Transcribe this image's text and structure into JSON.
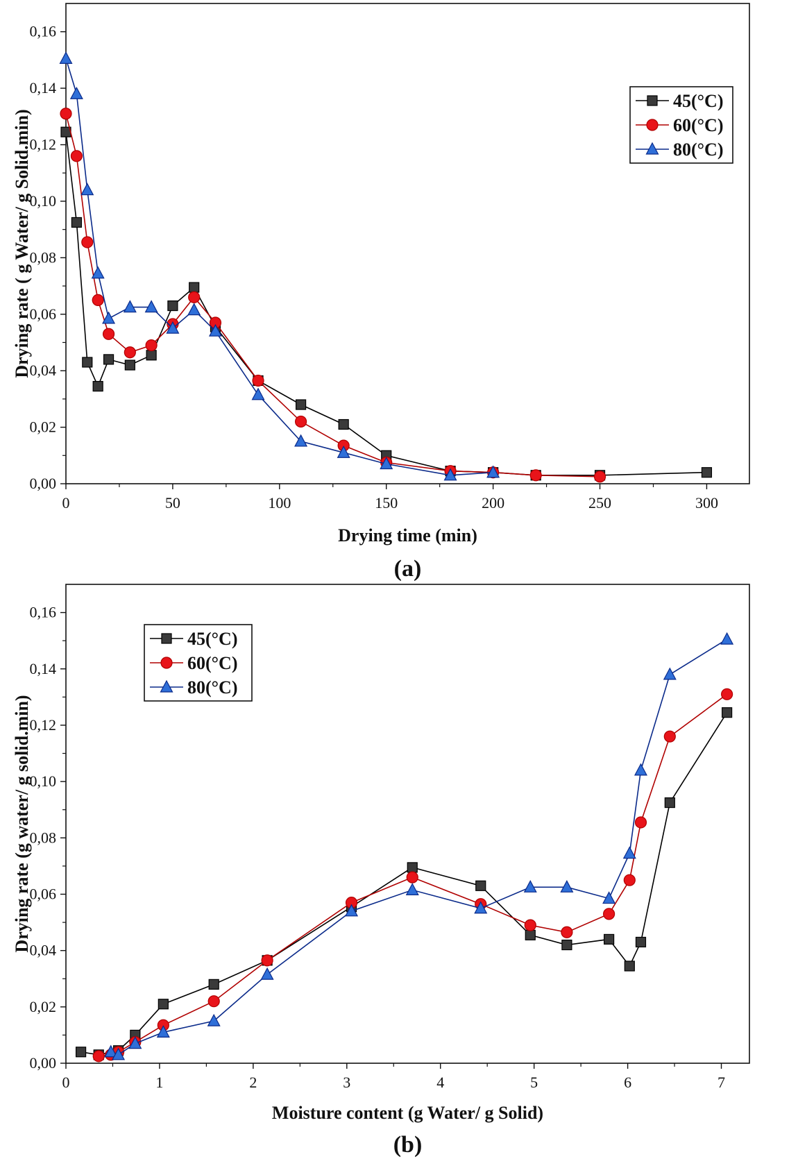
{
  "chart_data": [
    {
      "type": "line",
      "panel_label": "(a)",
      "xlabel": "Drying time (min)",
      "ylabel": "Drying rate ( g Water/ g Solid.min)",
      "xlim": [
        0,
        320
      ],
      "ylim": [
        0,
        0.17
      ],
      "xticks": [
        0,
        50,
        100,
        150,
        200,
        250,
        300
      ],
      "xtick_labels": [
        "0",
        "50",
        "100",
        "150",
        "200",
        "250",
        "300"
      ],
      "yticks": [
        0,
        0.02,
        0.04,
        0.06,
        0.08,
        0.1,
        0.12,
        0.14,
        0.16
      ],
      "ytick_labels": [
        "0,00",
        "0,02",
        "0,04",
        "0,06",
        "0,08",
        "0,10",
        "0,12",
        "0,14",
        "0,16"
      ],
      "legend_position": "top-right",
      "series": [
        {
          "name": "45(°C)",
          "marker": "square",
          "color": "#000000",
          "fill": "#3a3a3a",
          "x": [
            0,
            5,
            10,
            15,
            20,
            30,
            40,
            50,
            60,
            70,
            90,
            110,
            130,
            150,
            180,
            200,
            220,
            250,
            300
          ],
          "y": [
            0.1245,
            0.0925,
            0.043,
            0.0345,
            0.044,
            0.042,
            0.0455,
            0.063,
            0.0695,
            0.0555,
            0.0365,
            0.028,
            0.021,
            0.01,
            0.0045,
            0.004,
            0.003,
            0.003,
            0.004
          ]
        },
        {
          "name": "60(°C)",
          "marker": "circle",
          "color": "#b00000",
          "fill": "#e8141a",
          "x": [
            0,
            5,
            10,
            15,
            20,
            30,
            40,
            50,
            60,
            70,
            90,
            110,
            130,
            150,
            180,
            200,
            220,
            250
          ],
          "y": [
            0.131,
            0.116,
            0.0855,
            0.065,
            0.053,
            0.0465,
            0.049,
            0.0565,
            0.066,
            0.057,
            0.0365,
            0.022,
            0.0135,
            0.0075,
            0.0045,
            0.004,
            0.003,
            0.0025
          ]
        },
        {
          "name": "80(°C)",
          "marker": "triangle",
          "color": "#0a2a8a",
          "fill": "#2f6fd8",
          "x": [
            0,
            5,
            10,
            15,
            20,
            30,
            40,
            50,
            60,
            70,
            90,
            110,
            130,
            150,
            180,
            200
          ],
          "y": [
            0.1505,
            0.138,
            0.104,
            0.0745,
            0.0585,
            0.0625,
            0.0625,
            0.055,
            0.0615,
            0.054,
            0.0315,
            0.015,
            0.011,
            0.007,
            0.003,
            0.004
          ]
        }
      ]
    },
    {
      "type": "line",
      "panel_label": "(b)",
      "xlabel": "Moisture content (g Water/ g Solid)",
      "ylabel": "Drying rate (g water/ g solid.min)",
      "xlim": [
        0,
        7.3
      ],
      "ylim": [
        0,
        0.17
      ],
      "xticks": [
        0,
        1,
        2,
        3,
        4,
        5,
        6,
        7
      ],
      "xtick_labels": [
        "0",
        "1",
        "2",
        "3",
        "4",
        "5",
        "6",
        "7"
      ],
      "yticks": [
        0,
        0.02,
        0.04,
        0.06,
        0.08,
        0.1,
        0.12,
        0.14,
        0.16
      ],
      "ytick_labels": [
        "0,00",
        "0,02",
        "0,04",
        "0,06",
        "0,08",
        "0,10",
        "0,12",
        "0,14",
        "0,16"
      ],
      "legend_position": "top-left",
      "series": [
        {
          "name": "45(°C)",
          "marker": "square",
          "color": "#000000",
          "fill": "#3a3a3a",
          "x": [
            0.16,
            0.35,
            0.56,
            0.74,
            1.04,
            1.58,
            2.15,
            3.05,
            3.7,
            4.43,
            4.96,
            5.35,
            5.8,
            6.02,
            6.14,
            6.45,
            7.06
          ],
          "y": [
            0.004,
            0.003,
            0.0045,
            0.01,
            0.021,
            0.028,
            0.0365,
            0.0555,
            0.0695,
            0.063,
            0.0455,
            0.042,
            0.044,
            0.0345,
            0.043,
            0.0925,
            0.1245
          ]
        },
        {
          "name": "60(°C)",
          "marker": "circle",
          "color": "#b00000",
          "fill": "#e8141a",
          "x": [
            0.35,
            0.48,
            0.56,
            0.74,
            1.04,
            1.58,
            2.15,
            3.05,
            3.7,
            4.43,
            4.96,
            5.35,
            5.8,
            6.02,
            6.14,
            6.45,
            7.06
          ],
          "y": [
            0.0025,
            0.003,
            0.004,
            0.0075,
            0.0135,
            0.022,
            0.0365,
            0.057,
            0.066,
            0.0565,
            0.049,
            0.0465,
            0.053,
            0.065,
            0.0855,
            0.116,
            0.131
          ]
        },
        {
          "name": "80(°C)",
          "marker": "triangle",
          "color": "#0a2a8a",
          "fill": "#2f6fd8",
          "x": [
            0.48,
            0.56,
            0.74,
            1.04,
            1.58,
            2.15,
            3.05,
            3.7,
            4.43,
            4.96,
            5.35,
            5.8,
            6.02,
            6.14,
            6.45,
            7.06
          ],
          "y": [
            0.004,
            0.003,
            0.007,
            0.011,
            0.015,
            0.0315,
            0.054,
            0.0615,
            0.055,
            0.0625,
            0.0625,
            0.0585,
            0.0745,
            0.104,
            0.138,
            0.1505
          ]
        }
      ]
    }
  ]
}
